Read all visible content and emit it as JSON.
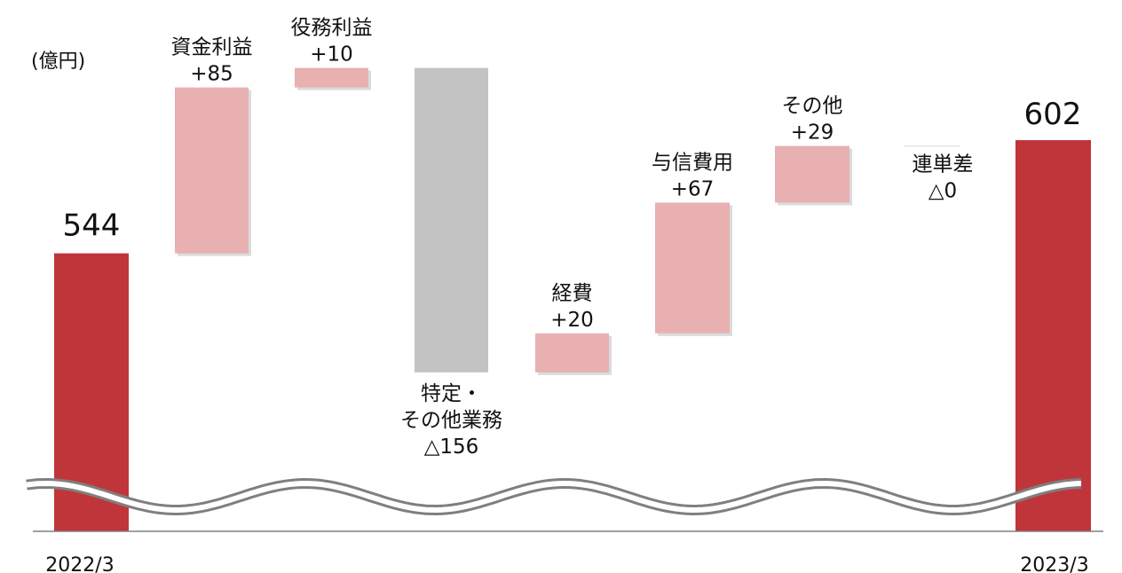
{
  "chart_data": {
    "type": "bar",
    "subtype": "waterfall",
    "unit_label": "(億円)",
    "start": {
      "label": "2022/3",
      "value": 544,
      "value_label": "544"
    },
    "end": {
      "label": "2023/3",
      "value": 602,
      "value_label": "602"
    },
    "steps": [
      {
        "name": "資金利益",
        "delta": 85,
        "delta_label": "+85"
      },
      {
        "name": "役務利益",
        "delta": 10,
        "delta_label": "+10"
      },
      {
        "name": "特定・\nその他業務",
        "delta": -156,
        "delta_label": "△156"
      },
      {
        "name": "経費",
        "delta": 20,
        "delta_label": "+20"
      },
      {
        "name": "与信費用",
        "delta": 67,
        "delta_label": "+67"
      },
      {
        "name": "その他",
        "delta": 29,
        "delta_label": "+29"
      },
      {
        "name": "連単差",
        "delta": 0,
        "delta_label": "△0"
      }
    ],
    "axis_break": true,
    "colors": {
      "total": "#c0353a",
      "increase": "#e8b0b1",
      "decrease": "#c3c3c3",
      "axis": "#808080"
    }
  }
}
